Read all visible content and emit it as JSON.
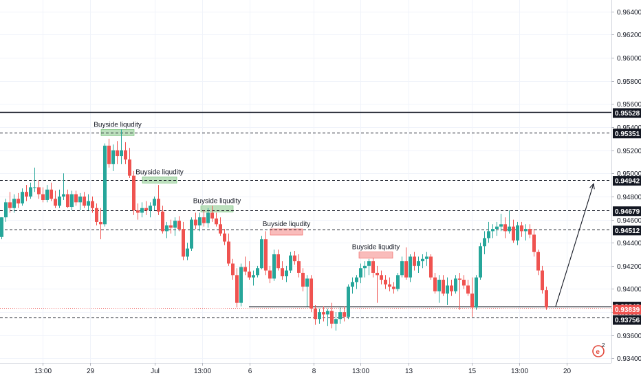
{
  "chart_data": {
    "type": "candlestick",
    "y_axis": {
      "position": "right",
      "ylim": [
        0.9323,
        0.965
      ],
      "tick_values": [
        0.964,
        0.962,
        0.96,
        0.958,
        0.956,
        0.954,
        0.952,
        0.95,
        0.948,
        0.946,
        0.944,
        0.942,
        0.94,
        0.938,
        0.936,
        0.934
      ],
      "tick_labels": [
        "0.96400",
        "0.96200",
        "0.96000",
        "0.95800",
        "0.95600",
        "0.95400",
        "0.95200",
        "0.95000",
        "0.94800",
        "0.94600",
        "0.94400",
        "0.94200",
        "0.94000",
        "0.93800",
        "0.93600",
        "0.93400"
      ]
    },
    "x_axis": {
      "tick_labels": [
        "13:00",
        "29",
        "Jul",
        "13:00",
        "6",
        "8",
        "13:00",
        "13",
        "15",
        "13:00",
        "20"
      ]
    },
    "price_tags": [
      {
        "label": "0.95528",
        "value": 0.95528,
        "style": "dark"
      },
      {
        "label": "0.95351",
        "value": 0.95351,
        "style": "dark"
      },
      {
        "label": "0.94942",
        "value": 0.94942,
        "style": "dark"
      },
      {
        "label": "0.94679",
        "value": 0.94679,
        "style": "dark"
      },
      {
        "label": "0.94512",
        "value": 0.94512,
        "style": "dark"
      },
      {
        "label": "0.93848",
        "value": 0.93848,
        "style": "dark"
      },
      {
        "label": "0.93839",
        "value": 0.93839,
        "style": "red"
      },
      {
        "label": "0.93756",
        "value": 0.93756,
        "style": "dark"
      }
    ],
    "horizontal_lines": [
      {
        "value": 0.95528,
        "style": "solid"
      },
      {
        "value": 0.95351,
        "style": "dashed"
      },
      {
        "value": 0.94942,
        "style": "dashed"
      },
      {
        "value": 0.94679,
        "style": "dashed"
      },
      {
        "value": 0.94512,
        "style": "dashed"
      },
      {
        "value": 0.93848,
        "style": "solid-partial"
      },
      {
        "value": 0.93839,
        "style": "dotted-red"
      },
      {
        "value": 0.93756,
        "style": "dashed"
      }
    ],
    "annotations": [
      {
        "text": "Buyside liqudity",
        "zone": "green",
        "top": 0.9538,
        "bottom": 0.9534
      },
      {
        "text": "Buyside liqudity",
        "zone": "green",
        "top": 0.9497,
        "bottom": 0.9492
      },
      {
        "text": "Buyside liqudity",
        "zone": "green",
        "top": 0.9472,
        "bottom": 0.9467
      },
      {
        "text": "Buyside liqudity",
        "zone": "red",
        "top": 0.9452,
        "bottom": 0.9447
      },
      {
        "text": "Buyside liqudity",
        "zone": "red",
        "top": 0.9432,
        "bottom": 0.9427
      }
    ],
    "projection_arrow": {
      "from": 0.9385,
      "to": 0.9491
    },
    "colors": {
      "up": "#26a69a",
      "down": "#ef5350",
      "line": "#131722",
      "tag_bg": "#131722",
      "tag_red": "#ef5350",
      "zone_green": "#a5d6a7",
      "zone_red": "#f7a6a4"
    },
    "candles": [
      [
        0.9445,
        0.9462,
        0.9443,
        0.9462
      ],
      [
        0.9462,
        0.9478,
        0.9458,
        0.9475
      ],
      [
        0.9475,
        0.9484,
        0.9466,
        0.947
      ],
      [
        0.947,
        0.9482,
        0.9466,
        0.9478
      ],
      [
        0.9478,
        0.9483,
        0.947,
        0.9474
      ],
      [
        0.9474,
        0.9487,
        0.9472,
        0.9484
      ],
      [
        0.9484,
        0.949,
        0.9476,
        0.948
      ],
      [
        0.948,
        0.9492,
        0.9478,
        0.9488
      ],
      [
        0.9488,
        0.9505,
        0.9484,
        0.9488
      ],
      [
        0.9488,
        0.9494,
        0.9478,
        0.9482
      ],
      [
        0.9482,
        0.9488,
        0.9475,
        0.9477
      ],
      [
        0.9477,
        0.949,
        0.9475,
        0.9486
      ],
      [
        0.9486,
        0.9492,
        0.9476,
        0.9478
      ],
      [
        0.9478,
        0.9485,
        0.947,
        0.9472
      ],
      [
        0.9472,
        0.9486,
        0.947,
        0.948
      ],
      [
        0.948,
        0.95,
        0.9477,
        0.9482
      ],
      [
        0.9482,
        0.9486,
        0.947,
        0.9471
      ],
      [
        0.9471,
        0.9485,
        0.9468,
        0.9482
      ],
      [
        0.9482,
        0.9485,
        0.9472,
        0.9475
      ],
      [
        0.9475,
        0.9483,
        0.9468,
        0.948
      ],
      [
        0.948,
        0.9484,
        0.947,
        0.9472
      ],
      [
        0.9472,
        0.9482,
        0.9468,
        0.9476
      ],
      [
        0.9476,
        0.948,
        0.9466,
        0.947
      ],
      [
        0.947,
        0.9474,
        0.9455,
        0.9458
      ],
      [
        0.9458,
        0.947,
        0.9443,
        0.9456
      ],
      [
        0.9456,
        0.9526,
        0.9454,
        0.9524
      ],
      [
        0.9524,
        0.953,
        0.9505,
        0.9508
      ],
      [
        0.9508,
        0.9525,
        0.9502,
        0.952
      ],
      [
        0.952,
        0.9528,
        0.9508,
        0.9515
      ],
      [
        0.9515,
        0.9538,
        0.9508,
        0.952
      ],
      [
        0.952,
        0.9527,
        0.9508,
        0.9512
      ],
      [
        0.9512,
        0.9522,
        0.9496,
        0.9498
      ],
      [
        0.9498,
        0.9502,
        0.9464,
        0.9468
      ],
      [
        0.9468,
        0.9474,
        0.946,
        0.9466
      ],
      [
        0.9466,
        0.9475,
        0.9462,
        0.947
      ],
      [
        0.947,
        0.9476,
        0.9464,
        0.9468
      ],
      [
        0.9468,
        0.9475,
        0.9462,
        0.9472
      ],
      [
        0.9472,
        0.948,
        0.9468,
        0.9478
      ],
      [
        0.9478,
        0.949,
        0.9464,
        0.9467
      ],
      [
        0.9467,
        0.9472,
        0.9448,
        0.945
      ],
      [
        0.945,
        0.9458,
        0.9444,
        0.9455
      ],
      [
        0.9455,
        0.946,
        0.9448,
        0.9453
      ],
      [
        0.9453,
        0.9462,
        0.9446,
        0.9459
      ],
      [
        0.9459,
        0.9463,
        0.945,
        0.9452
      ],
      [
        0.9452,
        0.9458,
        0.9425,
        0.9428
      ],
      [
        0.9428,
        0.944,
        0.9425,
        0.9435
      ],
      [
        0.9435,
        0.9462,
        0.9433,
        0.946
      ],
      [
        0.946,
        0.9466,
        0.9452,
        0.9455
      ],
      [
        0.9455,
        0.9466,
        0.945,
        0.9462
      ],
      [
        0.9462,
        0.9468,
        0.9454,
        0.9457
      ],
      [
        0.9457,
        0.947,
        0.9453,
        0.9466
      ],
      [
        0.9466,
        0.9472,
        0.9458,
        0.9461
      ],
      [
        0.9461,
        0.9466,
        0.9454,
        0.9456
      ],
      [
        0.9456,
        0.9462,
        0.9446,
        0.9448
      ],
      [
        0.9448,
        0.9452,
        0.9438,
        0.9441
      ],
      [
        0.9441,
        0.9448,
        0.942,
        0.9422
      ],
      [
        0.9422,
        0.9426,
        0.9408,
        0.9412
      ],
      [
        0.9412,
        0.9418,
        0.9384,
        0.9388
      ],
      [
        0.9388,
        0.9422,
        0.9385,
        0.9419
      ],
      [
        0.9419,
        0.9428,
        0.9412,
        0.9415
      ],
      [
        0.9415,
        0.9424,
        0.9408,
        0.941
      ],
      [
        0.941,
        0.9416,
        0.9403,
        0.9412
      ],
      [
        0.9412,
        0.942,
        0.941,
        0.9418
      ],
      [
        0.9418,
        0.9446,
        0.9417,
        0.9443
      ],
      [
        0.9443,
        0.945,
        0.9412,
        0.9416
      ],
      [
        0.9416,
        0.942,
        0.9405,
        0.9409
      ],
      [
        0.9409,
        0.9434,
        0.9407,
        0.943
      ],
      [
        0.943,
        0.9434,
        0.9416,
        0.9418
      ],
      [
        0.9418,
        0.9424,
        0.9408,
        0.9411
      ],
      [
        0.9411,
        0.942,
        0.9406,
        0.9416
      ],
      [
        0.9416,
        0.9432,
        0.9414,
        0.9429
      ],
      [
        0.9429,
        0.9433,
        0.9421,
        0.9424
      ],
      [
        0.9424,
        0.943,
        0.941,
        0.9414
      ],
      [
        0.9414,
        0.9418,
        0.9398,
        0.9402
      ],
      [
        0.9402,
        0.9412,
        0.9385,
        0.9409
      ],
      [
        0.9409,
        0.9412,
        0.938,
        0.9383
      ],
      [
        0.9383,
        0.9386,
        0.9369,
        0.9374
      ],
      [
        0.9374,
        0.9383,
        0.937,
        0.938
      ],
      [
        0.938,
        0.9385,
        0.9372,
        0.9378
      ],
      [
        0.9378,
        0.9383,
        0.9368,
        0.9381
      ],
      [
        0.9381,
        0.9388,
        0.9366,
        0.937
      ],
      [
        0.937,
        0.938,
        0.9364,
        0.9374
      ],
      [
        0.9374,
        0.9384,
        0.937,
        0.938
      ],
      [
        0.938,
        0.9385,
        0.9372,
        0.9376
      ],
      [
        0.9376,
        0.9404,
        0.9374,
        0.9402
      ],
      [
        0.9402,
        0.941,
        0.9396,
        0.9406
      ],
      [
        0.9406,
        0.9412,
        0.94,
        0.941
      ],
      [
        0.941,
        0.9422,
        0.9405,
        0.9418
      ],
      [
        0.9418,
        0.9424,
        0.941,
        0.942
      ],
      [
        0.942,
        0.9426,
        0.9412,
        0.9424
      ],
      [
        0.9424,
        0.9427,
        0.941,
        0.9414
      ],
      [
        0.9414,
        0.942,
        0.9388,
        0.9412
      ],
      [
        0.9412,
        0.9416,
        0.9404,
        0.9408
      ],
      [
        0.9408,
        0.9412,
        0.94,
        0.9404
      ],
      [
        0.9404,
        0.941,
        0.9398,
        0.9402
      ],
      [
        0.9402,
        0.9406,
        0.9396,
        0.94
      ],
      [
        0.94,
        0.9414,
        0.9398,
        0.9412
      ],
      [
        0.9412,
        0.9428,
        0.941,
        0.9424
      ],
      [
        0.9424,
        0.9436,
        0.9408,
        0.941
      ],
      [
        0.941,
        0.943,
        0.9406,
        0.9428
      ],
      [
        0.9428,
        0.9432,
        0.9416,
        0.942
      ],
      [
        0.942,
        0.9428,
        0.9414,
        0.9424
      ],
      [
        0.9424,
        0.943,
        0.9418,
        0.9426
      ],
      [
        0.9426,
        0.9432,
        0.942,
        0.9428
      ],
      [
        0.9428,
        0.943,
        0.9408,
        0.941
      ],
      [
        0.941,
        0.9414,
        0.9396,
        0.9398
      ],
      [
        0.9398,
        0.9412,
        0.9388,
        0.9408
      ],
      [
        0.9408,
        0.9412,
        0.9394,
        0.9396
      ],
      [
        0.9396,
        0.941,
        0.9386,
        0.9403
      ],
      [
        0.9403,
        0.9408,
        0.9394,
        0.9398
      ],
      [
        0.9398,
        0.9412,
        0.9396,
        0.9409
      ],
      [
        0.9409,
        0.9414,
        0.9382,
        0.9408
      ],
      [
        0.9408,
        0.9412,
        0.94,
        0.9403
      ],
      [
        0.9403,
        0.9408,
        0.9394,
        0.9396
      ],
      [
        0.9396,
        0.941,
        0.9376,
        0.9384
      ],
      [
        0.9384,
        0.9412,
        0.9382,
        0.941
      ],
      [
        0.941,
        0.944,
        0.9408,
        0.9437
      ],
      [
        0.9437,
        0.945,
        0.943,
        0.9444
      ],
      [
        0.9444,
        0.9458,
        0.944,
        0.945
      ],
      [
        0.945,
        0.9456,
        0.9444,
        0.9452
      ],
      [
        0.9452,
        0.9458,
        0.9446,
        0.9454
      ],
      [
        0.9454,
        0.9465,
        0.945,
        0.9456
      ],
      [
        0.9456,
        0.9462,
        0.9444,
        0.945
      ],
      [
        0.945,
        0.9468,
        0.9448,
        0.9454
      ],
      [
        0.9454,
        0.946,
        0.944,
        0.9442
      ],
      [
        0.9442,
        0.9458,
        0.9438,
        0.9455
      ],
      [
        0.9455,
        0.9458,
        0.9445,
        0.945
      ],
      [
        0.945,
        0.9456,
        0.9442,
        0.9452
      ],
      [
        0.9452,
        0.9456,
        0.9444,
        0.9447
      ],
      [
        0.9447,
        0.9452,
        0.9428,
        0.9432
      ],
      [
        0.9432,
        0.9434,
        0.9412,
        0.9416
      ],
      [
        0.9416,
        0.942,
        0.9396,
        0.9399
      ],
      [
        0.9399,
        0.9402,
        0.9382,
        0.9384
      ]
    ]
  }
}
